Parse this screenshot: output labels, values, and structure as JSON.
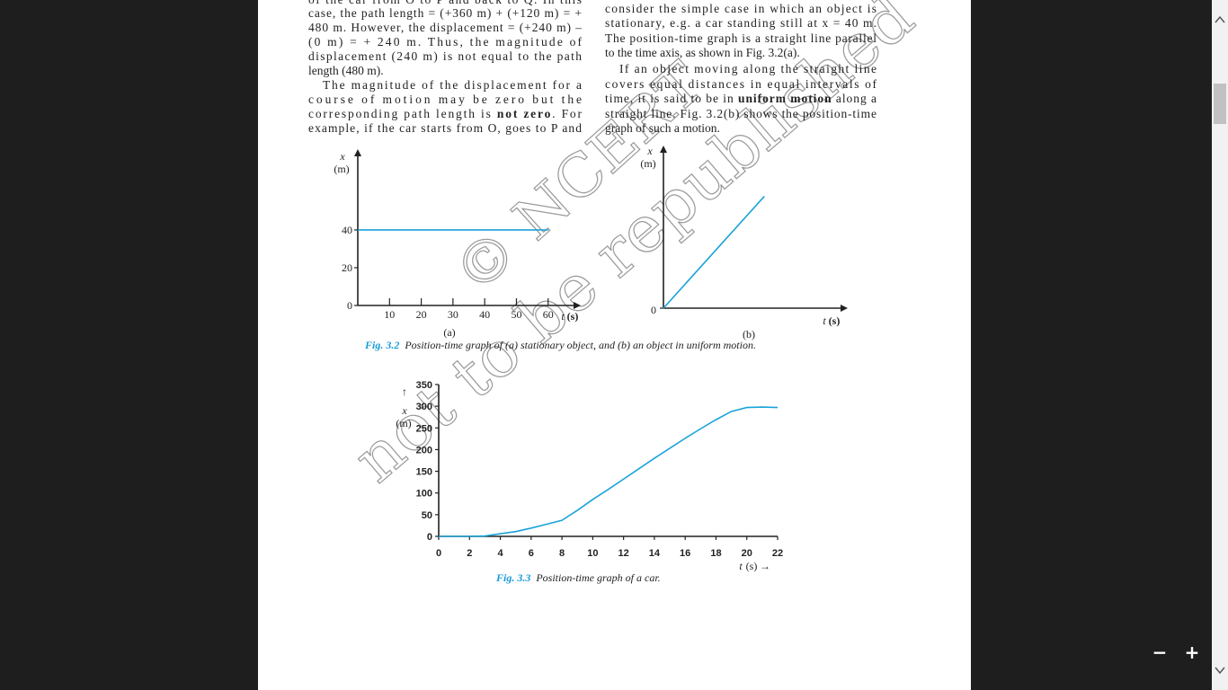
{
  "page": {
    "left_column": [
      [
        "of the car from O to P and back to Q. In this"
      ],
      [
        "case, the path length = (+360 m) + (+120 m) = +"
      ],
      [
        "480 m. However, the displacement = (+240 m) –"
      ],
      [
        "(0 m) =  + 240 m.  Thus, the magnitude of"
      ],
      [
        "displacement (240 m) is not equal to the path"
      ],
      [
        "length (480 m)."
      ],
      [
        "The magnitude of the displacement for a"
      ],
      [
        "course of motion may be zero but the"
      ],
      [
        "corresponding path length is ",
        {
          "text": "not zero",
          "bold": true
        },
        ".  For"
      ],
      [
        "example, if the car starts from O, goes to P and"
      ]
    ],
    "right_column": [
      [
        "consider the simple case in which an object is"
      ],
      [
        "stationary, e.g. a car standing still at x = 40 m."
      ],
      [
        "The position-time graph is a straight line parallel"
      ],
      [
        "to the time axis, as shown in Fig. 3.2(a)."
      ],
      [
        "If an object moving along the straight line"
      ],
      [
        "covers equal distances in equal intervals of"
      ],
      [
        "time, it is said to be in ",
        {
          "text": "uniform motion",
          "bold": true
        },
        " along a"
      ],
      [
        "straight line. Fig. 3.2(b) shows the position-time"
      ],
      [
        "graph of such a motion."
      ]
    ]
  },
  "watermark": [
    "© NCERT",
    "not to be republished"
  ],
  "figures": [
    {
      "number": "Fig. 3.2",
      "caption": "Position-time graph of (a) stationary object, and (b) an object in uniform motion."
    },
    {
      "number": "Fig. 3.3",
      "caption": "Position-time graph of a car."
    }
  ],
  "chart_data": [
    {
      "type": "line",
      "panel_label": "(a)",
      "y_label": "x",
      "y_unit": "(m)",
      "x_label": "t",
      "x_unit": "(s)",
      "xlim": [
        0,
        68
      ],
      "ylim": [
        0,
        79
      ],
      "xticks": [
        10,
        20,
        30,
        40,
        50,
        60
      ],
      "yticks": [
        0,
        20,
        40
      ],
      "series": [
        {
          "color": "#1aa3d9",
          "x": [
            0,
            60
          ],
          "values": [
            40,
            40
          ]
        }
      ]
    },
    {
      "type": "line",
      "panel_label": "(b)",
      "y_label": "x",
      "y_unit": "(m)",
      "x_label": "t",
      "x_unit": "(s)",
      "xlim": [
        0,
        10
      ],
      "ylim": [
        0,
        10
      ],
      "yticks": [
        0
      ],
      "series": [
        {
          "color": "#1aa3d9",
          "x": [
            0,
            5.7
          ],
          "values": [
            0,
            7.2
          ]
        }
      ]
    },
    {
      "type": "line",
      "y_arrow": "↑",
      "y_label": "x",
      "y_unit": "(m)",
      "x_label": "t",
      "x_unit": "(s)",
      "x_arrow": "→",
      "xlim": [
        0,
        22
      ],
      "ylim": [
        0,
        350
      ],
      "xticks": [
        0,
        2,
        4,
        6,
        8,
        10,
        12,
        14,
        16,
        18,
        20,
        22
      ],
      "yticks": [
        0,
        50,
        100,
        150,
        200,
        250,
        300,
        350
      ],
      "series": [
        {
          "color": "#1aa3d9",
          "x": [
            0,
            1,
            2,
            3,
            4,
            5,
            6,
            7,
            8,
            9,
            10,
            11,
            12,
            13,
            14,
            15,
            16,
            17,
            18,
            19,
            20,
            21,
            22
          ],
          "values": [
            0,
            0,
            0,
            1,
            6,
            11,
            19,
            28,
            37,
            60,
            85,
            108,
            132,
            156,
            180,
            203,
            226,
            248,
            269,
            288,
            297,
            298,
            297
          ]
        }
      ]
    }
  ],
  "viewer": {
    "zoom_out": "−",
    "zoom_in": "+"
  }
}
